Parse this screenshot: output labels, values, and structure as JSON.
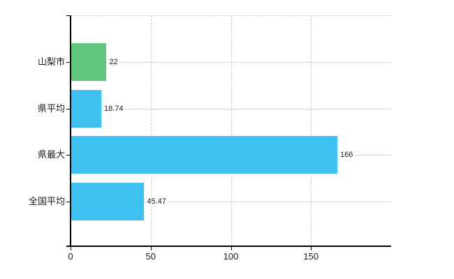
{
  "chart_data": {
    "type": "bar",
    "orientation": "horizontal",
    "title": "",
    "xlabel": "",
    "ylabel": "",
    "categories": [
      "山梨市",
      "県平均",
      "県最大",
      "全国平均"
    ],
    "values": [
      22,
      18.74,
      166,
      45.47
    ],
    "value_labels": [
      "22",
      "18.74",
      "166",
      "45.47"
    ],
    "bar_colors": [
      "#60c87e",
      "#3fc0f0",
      "#3fc0f0",
      "#3fc0f0"
    ],
    "x_ticks": [
      0,
      50,
      100,
      150
    ],
    "x_tick_labels": [
      "0",
      "50",
      "100",
      "150"
    ],
    "xlim": [
      0,
      200
    ],
    "grid": true,
    "legend": "none"
  },
  "colors": {
    "background": "#ffffff",
    "axis": "#000000",
    "grid_vertical": "#d2ccd2",
    "grid_horizontal": "#ccd5cc",
    "text": "#1a1a1a",
    "bar_green": "#60c87e",
    "bar_blue": "#3fc0f0"
  }
}
